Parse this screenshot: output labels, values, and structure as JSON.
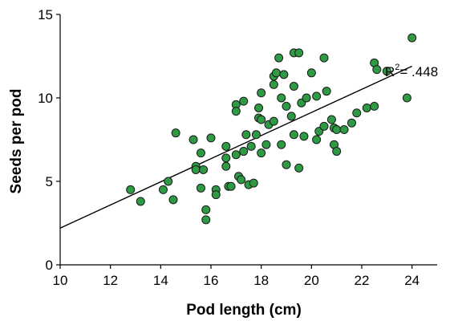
{
  "chart_data": {
    "type": "scatter",
    "title": "",
    "xlabel": "Pod length (cm)",
    "ylabel": "Seeds per pod",
    "xlim": [
      10,
      25
    ],
    "ylim": [
      0,
      15
    ],
    "x_ticks": [
      10,
      12,
      14,
      16,
      18,
      20,
      22,
      24
    ],
    "y_ticks": [
      0,
      5,
      10,
      15
    ],
    "grid": false,
    "legend": "none",
    "point_color": "#2e9a44",
    "point_edge_color": "#1a1a1a",
    "annotation": {
      "base": "R",
      "sup": "2",
      "text": "= .448"
    },
    "trendline": {
      "x": [
        10,
        24
      ],
      "y": [
        2.2,
        11.9
      ]
    },
    "points": [
      {
        "x": 12.8,
        "y": 4.5
      },
      {
        "x": 13.2,
        "y": 3.8
      },
      {
        "x": 14.1,
        "y": 4.5
      },
      {
        "x": 14.3,
        "y": 5.0
      },
      {
        "x": 14.5,
        "y": 3.9
      },
      {
        "x": 14.6,
        "y": 7.9
      },
      {
        "x": 15.3,
        "y": 7.5
      },
      {
        "x": 15.4,
        "y": 5.9
      },
      {
        "x": 15.4,
        "y": 5.7
      },
      {
        "x": 15.6,
        "y": 6.7
      },
      {
        "x": 15.6,
        "y": 4.6
      },
      {
        "x": 15.7,
        "y": 5.7
      },
      {
        "x": 15.8,
        "y": 3.3
      },
      {
        "x": 15.8,
        "y": 2.7
      },
      {
        "x": 16.0,
        "y": 7.6
      },
      {
        "x": 16.2,
        "y": 4.5
      },
      {
        "x": 16.2,
        "y": 4.2
      },
      {
        "x": 16.6,
        "y": 7.1
      },
      {
        "x": 16.6,
        "y": 6.4
      },
      {
        "x": 16.6,
        "y": 5.9
      },
      {
        "x": 16.7,
        "y": 4.7
      },
      {
        "x": 16.8,
        "y": 4.7
      },
      {
        "x": 17.0,
        "y": 9.6
      },
      {
        "x": 17.0,
        "y": 9.2
      },
      {
        "x": 17.0,
        "y": 6.6
      },
      {
        "x": 17.1,
        "y": 5.3
      },
      {
        "x": 17.2,
        "y": 5.1
      },
      {
        "x": 17.3,
        "y": 9.8
      },
      {
        "x": 17.3,
        "y": 6.8
      },
      {
        "x": 17.4,
        "y": 7.8
      },
      {
        "x": 17.5,
        "y": 4.8
      },
      {
        "x": 17.6,
        "y": 7.1
      },
      {
        "x": 17.7,
        "y": 4.9
      },
      {
        "x": 17.8,
        "y": 7.8
      },
      {
        "x": 17.9,
        "y": 9.4
      },
      {
        "x": 17.9,
        "y": 8.8
      },
      {
        "x": 18.0,
        "y": 10.3
      },
      {
        "x": 18.0,
        "y": 8.7
      },
      {
        "x": 18.0,
        "y": 6.7
      },
      {
        "x": 18.2,
        "y": 7.2
      },
      {
        "x": 18.3,
        "y": 8.4
      },
      {
        "x": 18.5,
        "y": 11.3
      },
      {
        "x": 18.5,
        "y": 10.8
      },
      {
        "x": 18.5,
        "y": 8.6
      },
      {
        "x": 18.6,
        "y": 11.5
      },
      {
        "x": 18.7,
        "y": 12.4
      },
      {
        "x": 18.8,
        "y": 10.0
      },
      {
        "x": 18.8,
        "y": 7.2
      },
      {
        "x": 18.9,
        "y": 11.4
      },
      {
        "x": 19.0,
        "y": 9.5
      },
      {
        "x": 19.0,
        "y": 6.0
      },
      {
        "x": 19.2,
        "y": 8.9
      },
      {
        "x": 19.3,
        "y": 12.7
      },
      {
        "x": 19.3,
        "y": 10.7
      },
      {
        "x": 19.3,
        "y": 7.8
      },
      {
        "x": 19.5,
        "y": 12.7
      },
      {
        "x": 19.5,
        "y": 5.8
      },
      {
        "x": 19.6,
        "y": 9.7
      },
      {
        "x": 19.7,
        "y": 7.7
      },
      {
        "x": 19.8,
        "y": 10.0
      },
      {
        "x": 20.0,
        "y": 11.5
      },
      {
        "x": 20.2,
        "y": 10.1
      },
      {
        "x": 20.2,
        "y": 7.5
      },
      {
        "x": 20.3,
        "y": 8.0
      },
      {
        "x": 20.5,
        "y": 12.4
      },
      {
        "x": 20.5,
        "y": 8.3
      },
      {
        "x": 20.6,
        "y": 10.4
      },
      {
        "x": 20.8,
        "y": 8.7
      },
      {
        "x": 20.9,
        "y": 8.2
      },
      {
        "x": 20.9,
        "y": 7.2
      },
      {
        "x": 21.0,
        "y": 8.1
      },
      {
        "x": 21.0,
        "y": 6.8
      },
      {
        "x": 21.3,
        "y": 8.1
      },
      {
        "x": 21.6,
        "y": 8.5
      },
      {
        "x": 21.8,
        "y": 9.1
      },
      {
        "x": 22.2,
        "y": 9.4
      },
      {
        "x": 22.5,
        "y": 9.5
      },
      {
        "x": 22.5,
        "y": 12.1
      },
      {
        "x": 22.6,
        "y": 11.7
      },
      {
        "x": 23.0,
        "y": 11.6
      },
      {
        "x": 23.8,
        "y": 10.0
      },
      {
        "x": 24.0,
        "y": 13.6
      }
    ]
  }
}
